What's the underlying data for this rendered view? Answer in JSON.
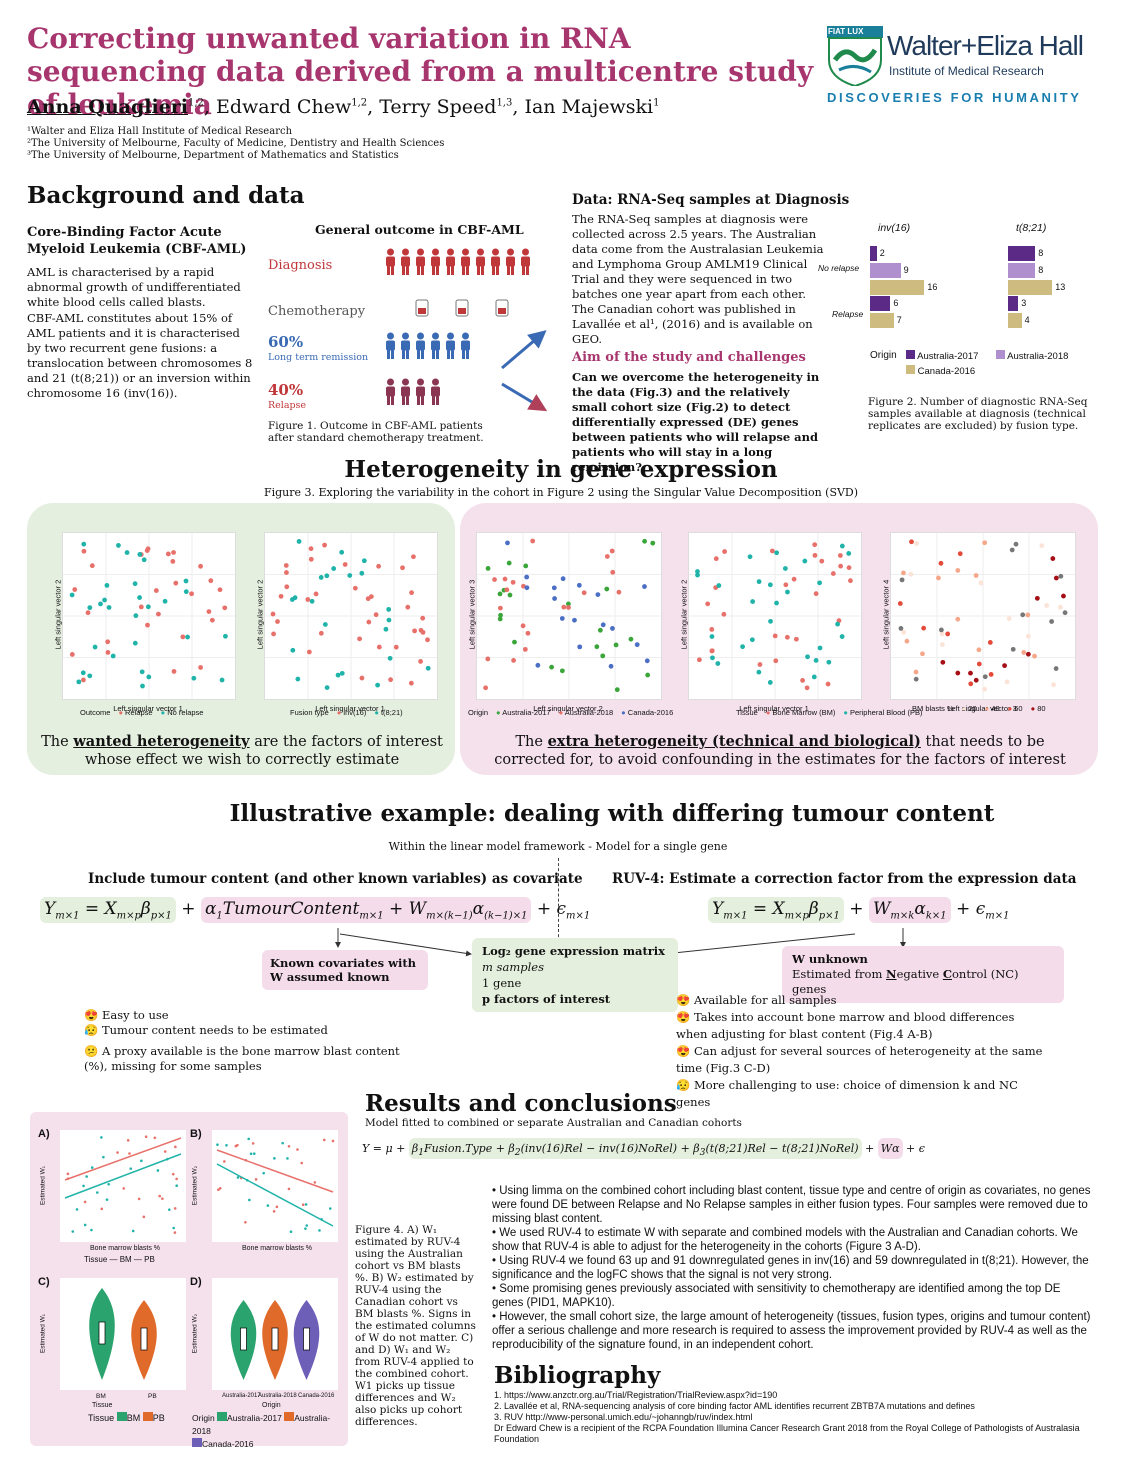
{
  "header": {
    "title": "Correcting unwanted variation in RNA sequencing data derived from a multicentre study of leukemia",
    "authors": [
      {
        "name": "Anna Quaglieri",
        "sup": "1,2",
        "sep": ", "
      },
      {
        "name": "Edward Chew",
        "sup": "1,2",
        "sep": ", "
      },
      {
        "name": "Terry Speed",
        "sup": "1,3",
        "sep": ", "
      },
      {
        "name": "Ian Majewski",
        "sup": "1",
        "sep": ""
      }
    ],
    "affiliations": [
      "¹Walter and Eliza Hall Institute of Medical Research",
      "²The University of Melbourne, Faculty of Medicine, Dentistry and Health Sciences",
      "³The University of Melbourne, Department of Mathematics and Statistics"
    ],
    "logo": {
      "badge": "FIAT LUX",
      "name": "Walter+Eliza Hall",
      "sub": "Institute of Medical Research",
      "tagline": "DISCOVERIES FOR HUMANITY"
    }
  },
  "background": {
    "heading": "Background and data",
    "cbf_title": "Core-Binding Factor Acute Myeloid Leukemia (CBF-AML)",
    "cbf_p1": "AML is characterised by a rapid abnormal growth of undifferentiated white blood cells called blasts.",
    "cbf_p2": "CBF-AML constitutes about 15% of AML patients and it is characterised by two recurrent gene fusions: a translocation between chromosomes 8 and 21 (t(8;21)) or an inversion within chromosome 16 (inv(16)).",
    "outcome_title": "General outcome in CBF-AML",
    "diagnosis": "Diagnosis",
    "chemo": "Chemotherapy",
    "remission_pct": "60%",
    "remission_label": "Long term remission",
    "relapse_pct": "40%",
    "relapse_label": "Relapse",
    "fig1_caption": "Figure 1. Outcome in CBF-AML patients after standard chemotherapy treatment.",
    "data_title": "Data: RNA-Seq samples at Diagnosis",
    "data_text": "The RNA-Seq samples at diagnosis were collected across 2.5 years. The Australian data come from the Australasian Leukemia and Lymphoma Group AMLM19 Clinical Trial and they were sequenced in two batches one year apart from each other. The Canadian cohort was published in Lavallée et al¹, (2016) and is available on GEO.",
    "aim_title": "Aim of the study and challenges",
    "aim_text": "Can we overcome the heterogeneity in the data (Fig.3) and the relatively small cohort size (Fig.2) to detect differentially expressed (DE) genes between patients who will relapse and patients who will stay in a long remission?",
    "fig2_caption": "Figure 2. Number of diagnostic RNA-Seq samples available at diagnosis (technical replicates are excluded) by fusion type."
  },
  "chart_data": [
    {
      "type": "bar",
      "orientation": "horizontal",
      "panels": [
        "inv(16)",
        "t(8;21)"
      ],
      "categories": [
        "No relapse",
        "Relapse"
      ],
      "series": [
        {
          "name": "Australia-2017",
          "color": "#5b2a86",
          "values": {
            "inv(16)": [
              2,
              6
            ],
            "t(8;21)": [
              8,
              3
            ]
          }
        },
        {
          "name": "Australia-2018",
          "color": "#b08fcf",
          "values": {
            "inv(16)": [
              9,
              null
            ],
            "t(8;21)": [
              8,
              null
            ]
          }
        },
        {
          "name": "Canada-2016",
          "color": "#cdbb7f",
          "values": {
            "inv(16)": [
              16,
              7
            ],
            "t(8;21)": [
              13,
              4
            ]
          }
        }
      ],
      "legend_title": "Origin",
      "legend_position": "bottom"
    }
  ],
  "heterogeneity": {
    "heading": "Heterogeneity in gene expression",
    "fig3_caption": "Figure 3. Exploring the variability in the cohort in Figure 2 using the Singular Value Decomposition (SVD)",
    "wanted_pre": "The ",
    "wanted_u": "wanted heterogeneity",
    "wanted_post": " are the factors of interest whose effect we wish to correctly estimate",
    "extra_pre": "The ",
    "extra_u": "extra heterogeneity (technical and biological)",
    "extra_post": " that needs to be corrected for, to avoid confounding in the estimates for the factors of interest",
    "plots": [
      {
        "xlab": "Left singular vector 1",
        "ylab": "Left singular vector 2",
        "legend_title": "Outcome",
        "legend": [
          "Relapse",
          "No relapse"
        ]
      },
      {
        "xlab": "Left singular vector 1",
        "ylab": "Left singular vector 2",
        "legend_title": "Fusion type",
        "legend": [
          "inv(16)",
          "t(8;21)"
        ]
      },
      {
        "xlab": "Left singular vector 2",
        "ylab": "Left singular vector 3",
        "legend_title": "Origin",
        "legend": [
          "Australia-2017",
          "Australia-2018",
          "Canada-2016"
        ]
      },
      {
        "xlab": "Left singular vector 1",
        "ylab": "Left singular vector 2",
        "legend_title": "Tissue",
        "legend": [
          "Bone Marrow (BM)",
          "Peripheral Blood (PB)"
        ]
      },
      {
        "xlab": "Left singular vector 3",
        "ylab": "Left singular vector 4",
        "legend_title": "BM blasts %",
        "legend": [
          "20",
          "40",
          "60",
          "80"
        ]
      }
    ]
  },
  "example": {
    "heading": "Illustrative example: dealing with differing tumour content",
    "subheading": "Within the linear model framework - Model for a single gene",
    "left_title": "Include tumour content (and other known variables) as covariate",
    "right_title": "RUV-4: Estimate a correction factor from the expression data",
    "known_cov": "Known covariates with W assumed known",
    "center_l1": "Log₂ gene expression matrix",
    "center_l2": "m samples",
    "center_l3": "1 gene",
    "center_l4": "p factors of interest",
    "w_unknown": "W unknown",
    "w_est_pre": "Estimated from ",
    "w_est_n": "N",
    "w_est_mid1": "egative ",
    "w_est_c": "C",
    "w_est_mid2": "ontrol (NC) genes",
    "pros_left": [
      "Easy to use",
      "Tumour content needs to be estimated",
      "A proxy available is the bone marrow blast content (%), missing for some samples"
    ],
    "pros_right": [
      "Available for all samples",
      "Takes into account bone marrow and blood differences when adjusting for blast content (Fig.4 A-B)",
      "Can adjust for several sources of heterogeneity at the same time (Fig.3 C-D)",
      "More challenging to use: choice of dimension k and NC genes"
    ]
  },
  "results": {
    "heading": "Results and conclusions",
    "subheading": "Model fitted to combined or separate Australian and Canadian cohorts",
    "fig4_caption": "Figure 4. A) W₁ estimated by RUV-4 using the Australian cohort vs BM blasts %. B) W₂ estimated by RUV-4 using the Canadian cohort vs BM blasts %. Signs in the estimated columns of W do not matter. C) and D) W₁ and W₂ from RUV-4 applied to the combined cohort. W1 picks up tissue differences and W₂ also picks up cohort differences.",
    "panel_labels": [
      "A)",
      "B)",
      "C)",
      "D)"
    ],
    "xlab_ab": "Bone marrow blasts %",
    "tissue_label": "Tissue",
    "bm": "BM",
    "pb": "PB",
    "origin_label": "Origin",
    "aus17": "Australia-2017",
    "aus18": "Australia-2018",
    "can16": "Canada-2016",
    "ylab_w1": "Estimated W₁",
    "ylab_w2": "Estimated W₂",
    "bullets": [
      "Using limma on the combined cohort including blast content, tissue type and centre of origin as covariates, no genes were found DE between Relapse and No Relapse samples in either fusion types. Four samples were removed due to missing blast content.",
      "We used RUV-4 to estimate W with separate and combined models with the Australian and Canadian cohorts. We show that RUV-4 is able to adjust for the heterogeneity in the cohorts (Figure 3 A-D).",
      "Using RUV-4 we found 63 up and 91 downregulated genes in inv(16) and 59 downregulated in t(8;21). However, the significance and the logFC shows that the signal is not very strong.",
      "Some promising genes previously associated with sensitivity to chemotherapy are identified among the top DE genes (PID1, MAPK10).",
      "However, the small cohort size, the large amount of heterogeneity (tissues, fusion types, origins and tumour content) offer a serious challenge and more research is required to assess the improvement provided by RUV-4 as well as the reproducibility of the signature found, in an independent cohort."
    ]
  },
  "bibliography": {
    "heading": "Bibliography",
    "items": [
      "1. https://www.anzctr.org.au/Trial/Registration/TrialReview.aspx?id=190",
      "2. Lavallée et al, RNA-sequencing analysis of core binding factor AML identifies recurrent ZBTB7A mutations and defines",
      "3. RUV http://www-personal.umich.edu/~johanngb/ruv/index.html",
      "Dr Edward Chew is a recipient of the RCPA Foundation Illumina Cancer Research Grant 2018 from the Royal College of Pathologists of Australasia Foundation"
    ]
  },
  "colors": {
    "title": "#a8366e",
    "relapse": "#e8706a",
    "norelapse": "#1fb3a9",
    "aus17": "#5b2a86",
    "aus18": "#b08fcf",
    "can16": "#cdbb7f",
    "blue": "#3a6ab4"
  }
}
